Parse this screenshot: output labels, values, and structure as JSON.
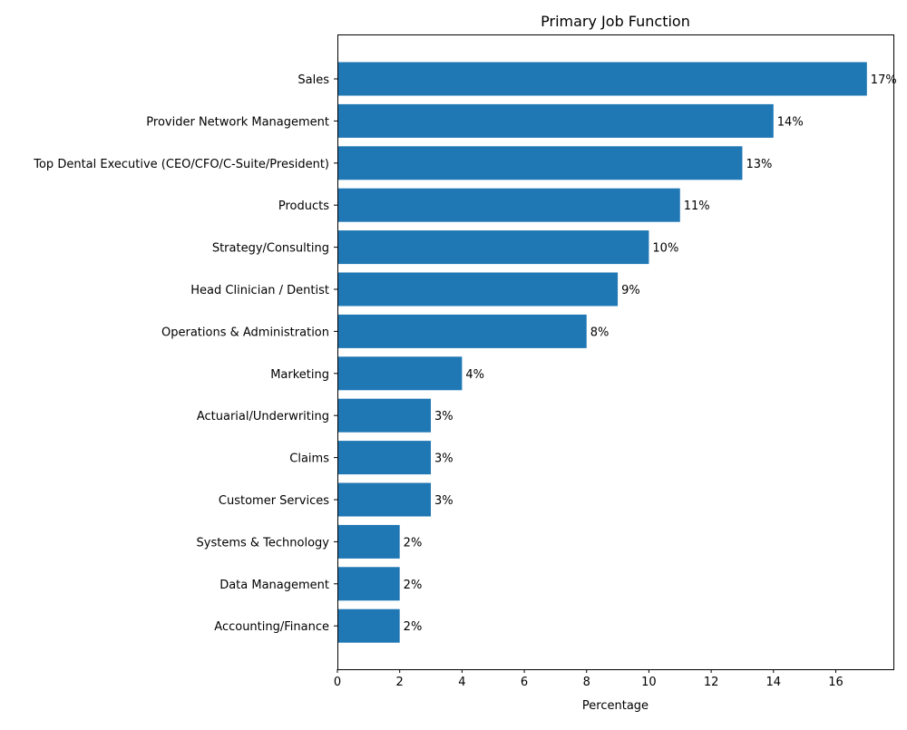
{
  "chart_data": {
    "type": "bar",
    "orientation": "horizontal",
    "title": "Primary Job Function",
    "xlabel": "Percentage",
    "ylabel": "",
    "categories": [
      "Sales",
      "Provider Network Management",
      "Top Dental Executive (CEO/CFO/C-Suite/President)",
      "Products",
      "Strategy/Consulting",
      "Head Clinician / Dentist",
      "Operations & Administration",
      "Marketing",
      "Actuarial/Underwriting",
      "Claims",
      "Customer Services",
      "Systems & Technology",
      "Data Management",
      "Accounting/Finance"
    ],
    "values": [
      17,
      14,
      13,
      11,
      10,
      9,
      8,
      4,
      3,
      3,
      3,
      2,
      2,
      2
    ],
    "value_labels": [
      "17%",
      "14%",
      "13%",
      "11%",
      "10%",
      "9%",
      "8%",
      "4%",
      "3%",
      "3%",
      "3%",
      "2%",
      "2%",
      "2%"
    ],
    "xlim": [
      0,
      17.85
    ],
    "xticks": [
      0,
      2,
      4,
      6,
      8,
      10,
      12,
      14,
      16
    ],
    "grid": false,
    "bar_color": "#1f77b4"
  }
}
